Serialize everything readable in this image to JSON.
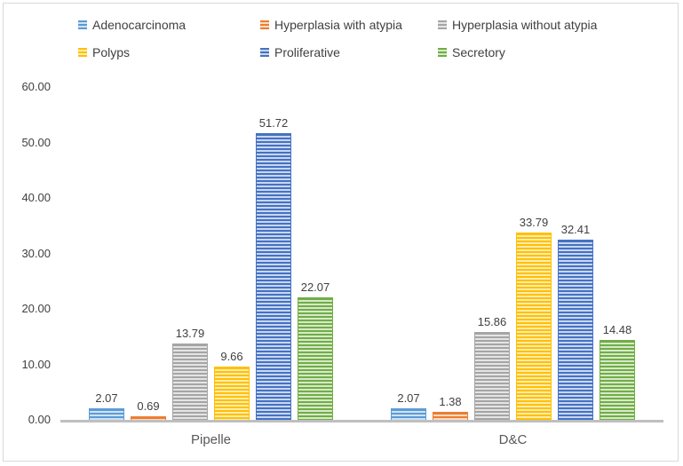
{
  "chart_data": {
    "type": "bar",
    "title": "",
    "xlabel": "",
    "ylabel": "",
    "categories": [
      "Pipelle",
      "D&C"
    ],
    "series": [
      {
        "name": "Adenocarcinoma",
        "color": "#5b9bd5",
        "light": "#cfe1f2",
        "values": [
          2.07,
          2.07
        ]
      },
      {
        "name": "Hyperplasia with atypia",
        "color": "#ed7d31",
        "light": "#fadcc5",
        "values": [
          0.69,
          1.38
        ]
      },
      {
        "name": "Hyperplasia without atypia",
        "color": "#a5a5a5",
        "light": "#e4e4e4",
        "values": [
          13.79,
          15.86
        ]
      },
      {
        "name": "Polyps",
        "color": "#ffc000",
        "light": "#ffecb0",
        "values": [
          9.66,
          33.79
        ]
      },
      {
        "name": "Proliferative",
        "color": "#4472c4",
        "light": "#c9d6ef",
        "values": [
          51.72,
          32.41
        ]
      },
      {
        "name": "Secretory",
        "color": "#70ad47",
        "light": "#d7e9c8",
        "values": [
          22.07,
          14.48
        ]
      }
    ],
    "data_labels": {
      "Pipelle": [
        "2.07",
        "0.69",
        "13.79",
        "9.66",
        "51.72",
        "22.07"
      ],
      "D&C": [
        "2.07",
        "1.38",
        "15.86",
        "33.79",
        "32.41",
        "14.48"
      ]
    },
    "y_ticks": [
      "0.00",
      "10.00",
      "20.00",
      "30.00",
      "40.00",
      "50.00",
      "60.00"
    ],
    "ylim": [
      0,
      60
    ],
    "grid": false,
    "legend_position": "top",
    "bar_pattern": "horizontal-stripes"
  },
  "colors": {
    "text": "#404040",
    "category_text": "#595959",
    "axis_line": "#bfbfbf",
    "chart_border": "#d9d9d9",
    "background": "#ffffff"
  }
}
